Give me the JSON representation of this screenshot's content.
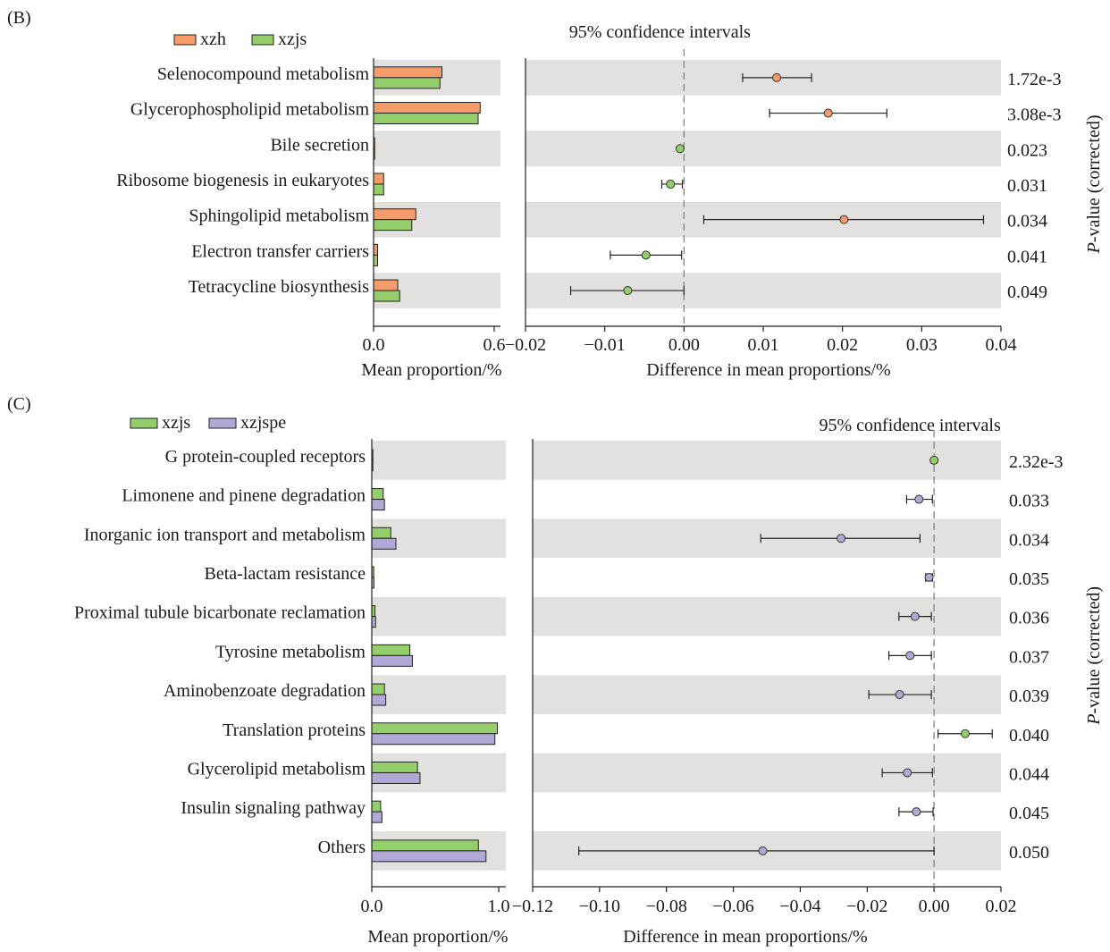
{
  "chart_data": [
    {
      "panel_label": "(B)",
      "type": "bar+errorbar",
      "legend": [
        {
          "name": "xzh",
          "color": "#F59C6B"
        },
        {
          "name": "xzjs",
          "color": "#94CE6A"
        }
      ],
      "categories": [
        "Selenocompound metabolism",
        "Glycerophospholipid metabolism",
        "Bile secretion",
        "Ribosome biogenesis in eukaryotes",
        "Sphingolipid metabolism",
        "Electron transfer carriers",
        "Tetracycline biosynthesis"
      ],
      "mean_proportion": {
        "xlabel": "Mean proportion/%",
        "xlim": [
          0.0,
          0.6
        ],
        "ticks": [
          "0.0",
          "0.6"
        ],
        "series": [
          {
            "name": "xzh",
            "values": [
              0.34,
              0.53,
              0.002,
              0.05,
              0.21,
              0.02,
              0.12
            ]
          },
          {
            "name": "xzjs",
            "values": [
              0.33,
              0.52,
              0.002,
              0.05,
              0.19,
              0.02,
              0.13
            ]
          }
        ]
      },
      "difference": {
        "title": "95% confidence intervals",
        "xlabel": "Difference in mean proportions/%",
        "xlim": [
          -0.02,
          0.04
        ],
        "ticks": [
          "−0.02",
          "−0.01",
          "0.00",
          "0.01",
          "0.02",
          "0.03",
          "0.04"
        ],
        "estimates": [
          0.0117,
          0.0182,
          -0.0005,
          -0.0017,
          0.0202,
          -0.0048,
          -0.0071
        ],
        "ci_low": [
          0.0074,
          0.0108,
          -0.0005,
          -0.0028,
          0.0025,
          -0.0093,
          -0.0143
        ],
        "ci_high": [
          0.0161,
          0.0256,
          -0.0005,
          -0.0002,
          0.0378,
          -0.0003,
          0.0
        ],
        "point_series": [
          "xzh",
          "xzh",
          "xzjs",
          "xzjs",
          "xzh",
          "xzjs",
          "xzjs"
        ]
      },
      "p_values": [
        "1.72e-3",
        "3.08e-3",
        "0.023",
        "0.031",
        "0.034",
        "0.041",
        "0.049"
      ],
      "p_axis_label_italic": "P",
      "p_axis_label_rest": "-value (corrected)"
    },
    {
      "panel_label": "(C)",
      "type": "bar+errorbar",
      "legend": [
        {
          "name": "xzjs",
          "color": "#94CE6A"
        },
        {
          "name": "xzjspe",
          "color": "#B2A8D6"
        }
      ],
      "categories": [
        "G protein-coupled receptors",
        "Limonene and pinene degradation",
        "Inorganic ion transport and metabolism",
        "Beta-lactam resistance",
        "Proximal tubule bicarbonate reclamation",
        "Tyrosine metabolism",
        "Aminobenzoate degradation",
        "Translation proteins",
        "Glycerolipid metabolism",
        "Insulin signaling pathway",
        "Others"
      ],
      "mean_proportion": {
        "xlabel": "Mean proportion/%",
        "xlim": [
          0.0,
          1.0
        ],
        "ticks": [
          "0.0",
          "1.0"
        ],
        "series": [
          {
            "name": "xzjs",
            "values": [
              0.003,
              0.09,
              0.15,
              0.015,
              0.025,
              0.3,
              0.1,
              0.99,
              0.36,
              0.07,
              0.84
            ]
          },
          {
            "name": "xzjspe",
            "values": [
              0.003,
              0.1,
              0.19,
              0.017,
              0.03,
              0.32,
              0.11,
              0.97,
              0.38,
              0.08,
              0.9
            ]
          }
        ]
      },
      "difference": {
        "title": "95% confidence intervals",
        "xlabel": "Difference in mean proportions/%",
        "xlim": [
          -0.12,
          0.02
        ],
        "ticks": [
          "−0.12",
          "−0.10",
          "−0.08",
          "−0.06",
          "−0.04",
          "−0.02",
          "0.00",
          "0.02"
        ],
        "estimates": [
          0.0,
          -0.0045,
          -0.0278,
          -0.0015,
          -0.0057,
          -0.0072,
          -0.0103,
          0.0093,
          -0.008,
          -0.0053,
          -0.0512
        ],
        "ci_low": [
          0.0,
          -0.0082,
          -0.0518,
          -0.0025,
          -0.0105,
          -0.0135,
          -0.0195,
          0.0012,
          -0.0155,
          -0.0105,
          -0.1062
        ],
        "ci_high": [
          0.0,
          -0.0005,
          -0.0042,
          -0.0005,
          -0.0008,
          -0.0008,
          -0.0008,
          0.0174,
          -0.0005,
          -0.0003,
          0.0
        ],
        "point_series": [
          "xzjs",
          "xzjspe",
          "xzjspe",
          "xzjspe",
          "xzjspe",
          "xzjspe",
          "xzjspe",
          "xzjs",
          "xzjspe",
          "xzjspe",
          "xzjspe"
        ]
      },
      "p_values": [
        "2.32e-3",
        "0.033",
        "0.034",
        "0.035",
        "0.036",
        "0.037",
        "0.039",
        "0.040",
        "0.044",
        "0.045",
        "0.050"
      ],
      "p_axis_label_italic": "P",
      "p_axis_label_rest": "-value (corrected)"
    }
  ]
}
